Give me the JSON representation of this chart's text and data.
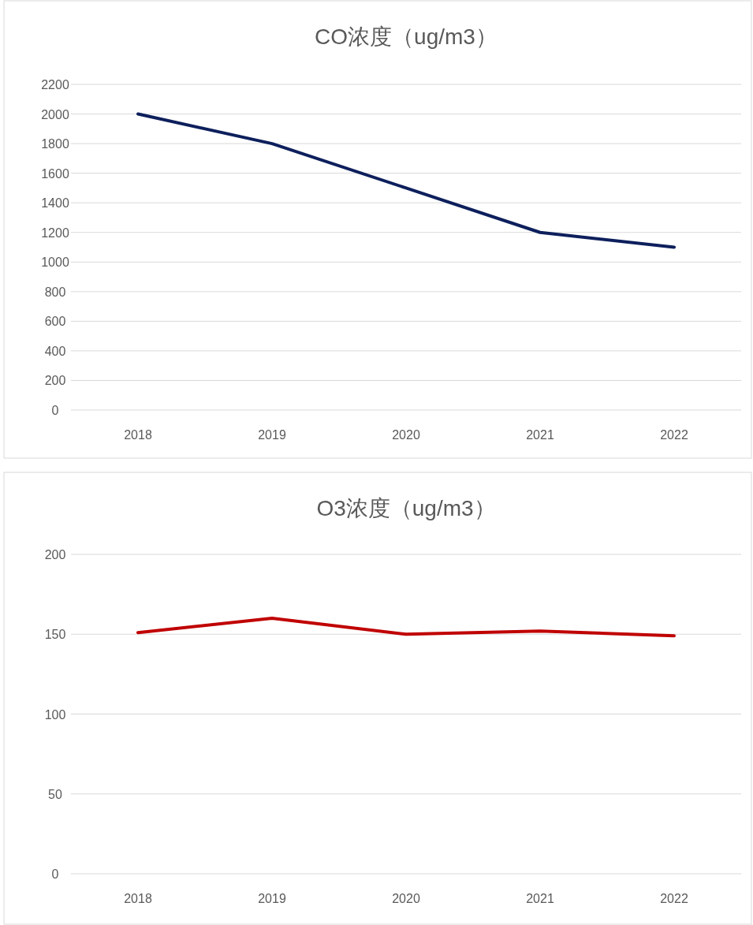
{
  "chart_data": [
    {
      "type": "line",
      "title": "CO浓度（ug/m3）",
      "categories": [
        "2018",
        "2019",
        "2020",
        "2021",
        "2022"
      ],
      "series": [
        {
          "color": "#0d1f5c",
          "values": [
            2000,
            1800,
            1500,
            1200,
            1100
          ]
        }
      ],
      "ylim": [
        0,
        2200
      ],
      "yticks": [
        0,
        200,
        400,
        600,
        800,
        1000,
        1200,
        1400,
        1600,
        1800,
        2000,
        2200
      ],
      "grid": "y"
    },
    {
      "type": "line",
      "title": "O3浓度（ug/m3）",
      "categories": [
        "2018",
        "2019",
        "2020",
        "2021",
        "2022"
      ],
      "series": [
        {
          "color": "#c00000",
          "values": [
            151,
            160,
            150,
            152,
            149
          ]
        }
      ],
      "ylim": [
        0,
        200
      ],
      "yticks": [
        0,
        50,
        100,
        150,
        200
      ],
      "grid": "y"
    }
  ]
}
